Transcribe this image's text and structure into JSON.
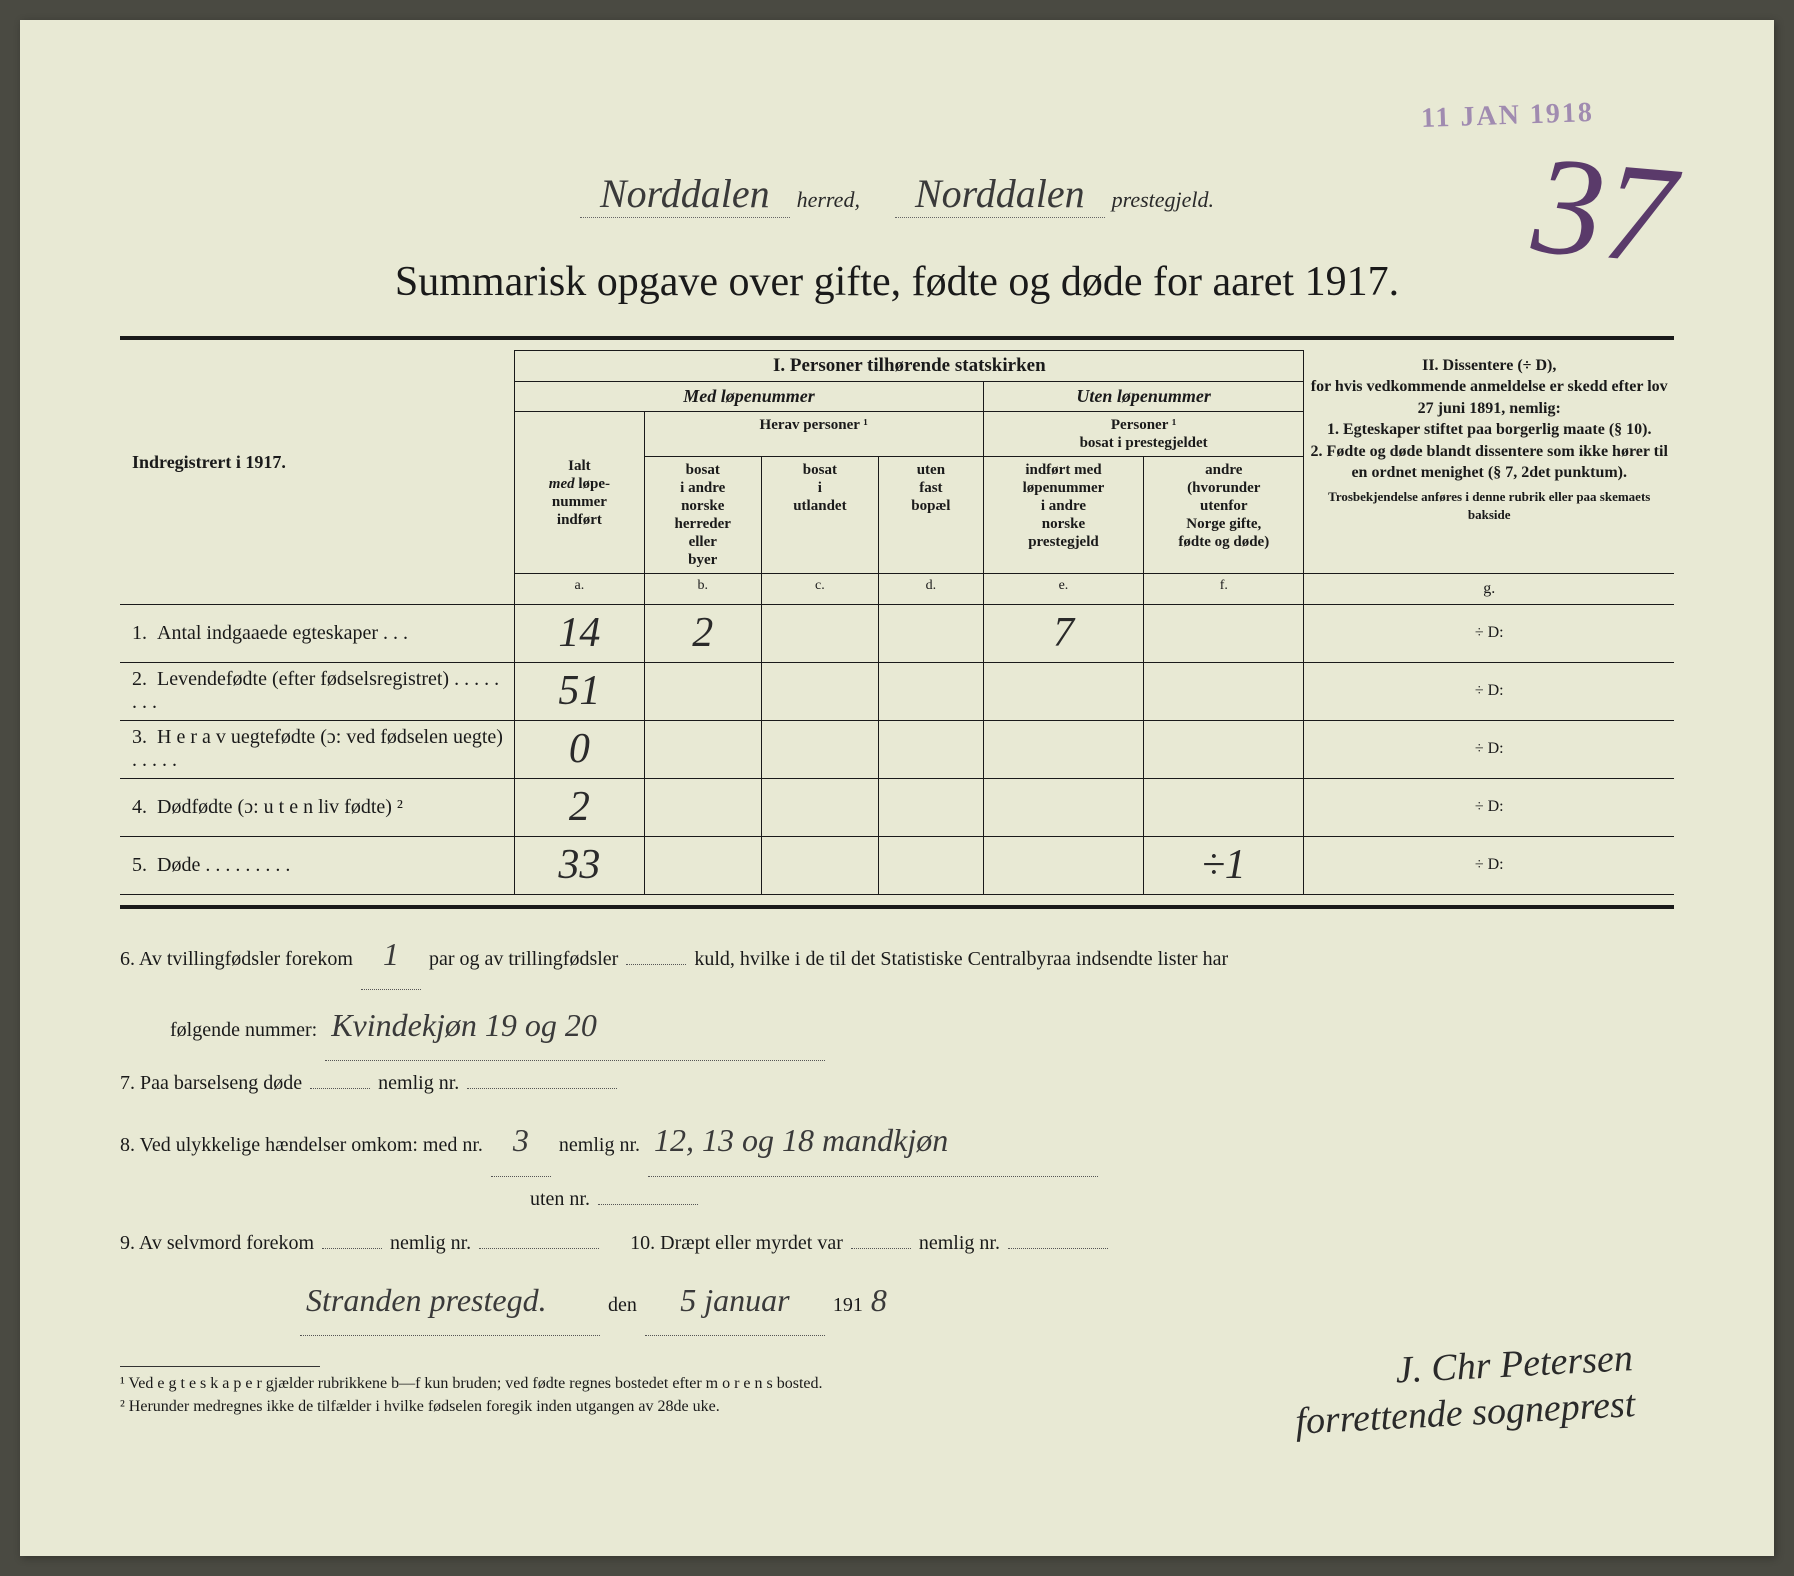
{
  "stamp": {
    "date": "11 JAN 1918",
    "number": "37"
  },
  "header": {
    "herred_hand": "Norddalen",
    "herred_label": "herred,",
    "prestegjeld_hand": "Norddalen",
    "prestegjeld_label": "prestegjeld."
  },
  "title": "Summarisk opgave over gifte, fødte og døde for aaret 1917.",
  "table": {
    "indregistrert": "Indregistrert i 1917.",
    "section1": "I.  Personer tilhørende statskirken",
    "med_lope": "Med løpenummer",
    "uten_lope": "Uten løpenummer",
    "herav": "Herav personer",
    "personer_bosat": "Personer ¹\nbosat i prestegjeldet",
    "ialt": "Ialt\nmed løpe-\nnummer\nindført",
    "col_b": "bosat\ni andre\nnorske\nherreder\neller\nbyer",
    "col_c": "bosat\ni\nutlandet",
    "col_d": "uten\nfast\nbopæl",
    "col_e": "indført med\nløpenummer\ni andre\nnorske\nprestegjeld",
    "col_f": "andre\n(hvorunder\nutenfor\nNorge gifte,\nfødte og døde)",
    "letters": {
      "a": "a.",
      "b": "b.",
      "c": "c.",
      "d": "d.",
      "e": "e.",
      "f": "f.",
      "g": "g."
    },
    "section2_title": "II.  Dissentere (÷ D),",
    "section2_body": "for hvis vedkommende anmeldelse er skedd efter lov 27 juni 1891, nemlig:\n1. Egteskaper stiftet paa borgerlig maate (§ 10).\n2. Fødte og døde blandt dissentere som ikke hører til en ordnet menighet (§ 7, 2det punktum).",
    "section2_note": "Trosbekjendelse anføres i denne rubrik eller paa skemaets bakside",
    "rows": [
      {
        "n": "1.",
        "label": "Antal indgaaede egteskaper  .  .  .",
        "a": "14",
        "b": "2",
        "c": "",
        "d": "",
        "e": "7",
        "f": "",
        "g": "÷ D:"
      },
      {
        "n": "2.",
        "label": "Levendefødte (efter fødselsregistret)  .  .  .  .  .  .  .  .",
        "a": "51",
        "b": "",
        "c": "",
        "d": "",
        "e": "",
        "f": "",
        "g": "÷ D:"
      },
      {
        "n": "3.",
        "label": "H e r a v  uegtefødte  (ɔ: ved fødselen uegte)  .  .  .  .  .",
        "a": "0",
        "b": "",
        "c": "",
        "d": "",
        "e": "",
        "f": "",
        "g": "÷ D:"
      },
      {
        "n": "4.",
        "label": "Dødfødte (ɔ: u t e n liv fødte) ²",
        "a": "2",
        "b": "",
        "c": "",
        "d": "",
        "e": "",
        "f": "",
        "g": "÷ D:"
      },
      {
        "n": "5.",
        "label": "Døde  .  .  .  .  .  .  .  .  .",
        "a": "33",
        "b": "",
        "c": "",
        "d": "",
        "e": "",
        "f": "÷1",
        "g": "÷ D:"
      }
    ]
  },
  "lower": {
    "line6_a": "6.   Av tvillingfødsler forekom",
    "line6_twin": "1",
    "line6_b": "par og av trillingfødsler",
    "line6_trip": "",
    "line6_c": "kuld, hvilke i de til det Statistiske Centralbyraa indsendte lister har",
    "line6_d": "følgende nummer:",
    "line6_hand": "Kvindekjøn 19 og 20",
    "line7_a": "7.   Paa barselseng døde",
    "line7_v": "",
    "line7_b": "nemlig nr.",
    "line7_v2": "",
    "line8_a": "8.   Ved ulykkelige hændelser omkom:  med nr.",
    "line8_med": "3",
    "line8_b": "nemlig nr.",
    "line8_hand": "12, 13 og 18 mandkjøn",
    "line8_c": "uten nr.",
    "line8_uten": "",
    "line9_a": "9.   Av selvmord forekom",
    "line9_v": "",
    "line9_b": "nemlig nr.",
    "line9_v2": "",
    "line10_a": "10.  Dræpt eller myrdet var",
    "line10_v": "",
    "line10_b": "nemlig nr.",
    "line10_v2": "",
    "place": "Stranden prestegd.",
    "den": "den",
    "date_day": "5 januar",
    "date_year_prefix": "191",
    "date_year_suffix": "8"
  },
  "signature": {
    "line1": "J. Chr Petersen",
    "line2": "forrettende sogneprest"
  },
  "footnotes": {
    "f1": "¹ Ved  e g t e s k a p e r  gjælder rubrikkene b—f kun bruden; ved fødte regnes bostedet efter  m o r e n s  bosted.",
    "f2": "² Herunder medregnes ikke de tilfælder i hvilke fødselen foregik inden utgangen av 28de uke."
  },
  "colors": {
    "paper": "#e8e9d4",
    "ink": "#1a1a1a",
    "hand": "#3a3a3a",
    "stamp": "#a08bb0"
  }
}
